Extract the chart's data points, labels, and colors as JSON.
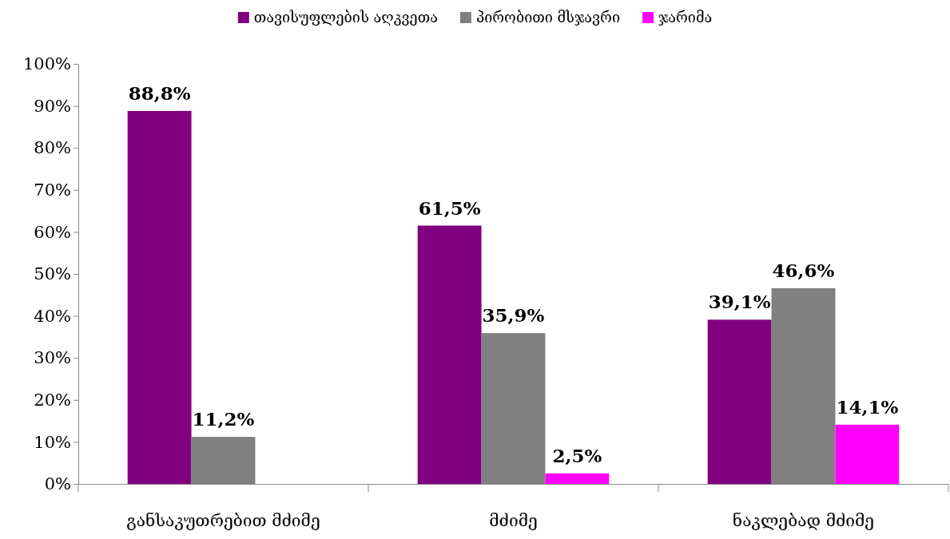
{
  "chart_data": {
    "type": "bar",
    "categories": [
      "განსაკუთრებით მძიმე",
      "მძიმე",
      "ნაკლებად მძიმე"
    ],
    "series": [
      {
        "name": "თავისუფლების აღკვეთა",
        "color": "#800080",
        "values": [
          88.8,
          61.5,
          39.1
        ],
        "value_labels": [
          "88,8%",
          "61,5%",
          "39,1%"
        ]
      },
      {
        "name": "პირობითი მსჯავრი",
        "color": "#808080",
        "values": [
          11.2,
          35.9,
          46.6
        ],
        "value_labels": [
          "11,2%",
          "35,9%",
          "46,6%"
        ]
      },
      {
        "name": "ჯარიმა",
        "color": "#ff00ff",
        "values": [
          null,
          2.5,
          14.1
        ],
        "value_labels": [
          null,
          "2,5%",
          "14,1%"
        ]
      }
    ],
    "ylim": [
      0,
      100
    ],
    "yticks": [
      {
        "value": 0,
        "label": "0%"
      },
      {
        "value": 10,
        "label": "10%"
      },
      {
        "value": 20,
        "label": "20%"
      },
      {
        "value": 30,
        "label": "30%"
      },
      {
        "value": 40,
        "label": "40%"
      },
      {
        "value": 50,
        "label": "50%"
      },
      {
        "value": 60,
        "label": "60%"
      },
      {
        "value": 70,
        "label": "70%"
      },
      {
        "value": 80,
        "label": "80%"
      },
      {
        "value": 90,
        "label": "90%"
      },
      {
        "value": 100,
        "label": "100%"
      }
    ],
    "grid": false,
    "legend": "top"
  }
}
